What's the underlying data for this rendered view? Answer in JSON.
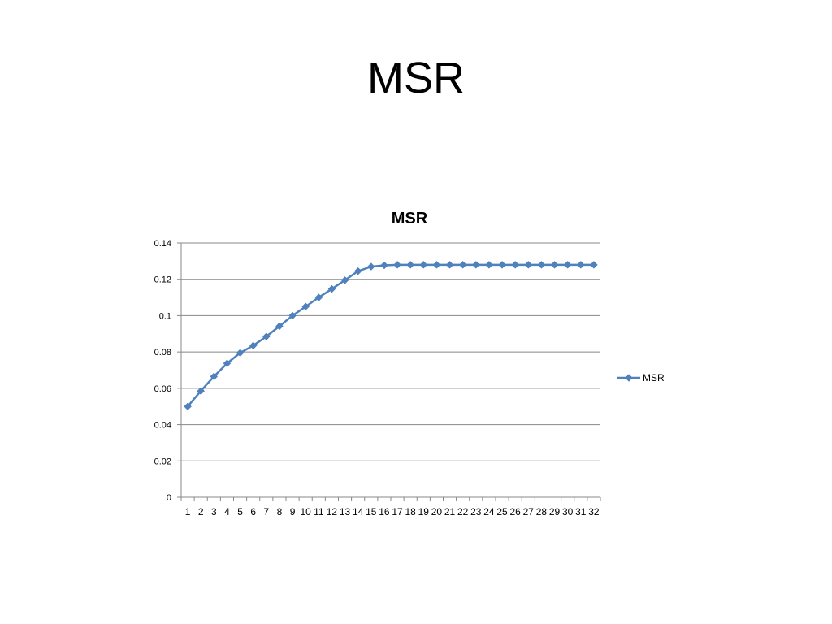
{
  "slide": {
    "title": "MSR"
  },
  "chart_data": {
    "type": "line",
    "title": "MSR",
    "xlabel": "",
    "ylabel": "",
    "categories": [
      "1",
      "2",
      "3",
      "4",
      "5",
      "6",
      "7",
      "8",
      "9",
      "10",
      "11",
      "12",
      "13",
      "14",
      "15",
      "16",
      "17",
      "18",
      "19",
      "20",
      "21",
      "22",
      "23",
      "24",
      "25",
      "26",
      "27",
      "28",
      "29",
      "30",
      "31",
      "32"
    ],
    "ylim": [
      0,
      0.14
    ],
    "yticks": [
      0,
      0.02,
      0.04,
      0.06,
      0.08,
      0.1,
      0.12,
      0.14
    ],
    "ytick_labels": [
      "0",
      "0.02",
      "0.04",
      "0.06",
      "0.08",
      "0.1",
      "0.12",
      "0.14"
    ],
    "grid": true,
    "legend_position": "right",
    "series": [
      {
        "name": "MSR",
        "color": "#4F81BD",
        "marker": "diamond",
        "values": [
          0.05,
          0.0585,
          0.0665,
          0.0737,
          0.0795,
          0.0835,
          0.0885,
          0.0942,
          0.1,
          0.105,
          0.11,
          0.1147,
          0.1195,
          0.1245,
          0.127,
          0.1277,
          0.128,
          0.128,
          0.128,
          0.128,
          0.128,
          0.128,
          0.128,
          0.128,
          0.128,
          0.128,
          0.128,
          0.128,
          0.128,
          0.128,
          0.128,
          0.128
        ]
      }
    ]
  }
}
